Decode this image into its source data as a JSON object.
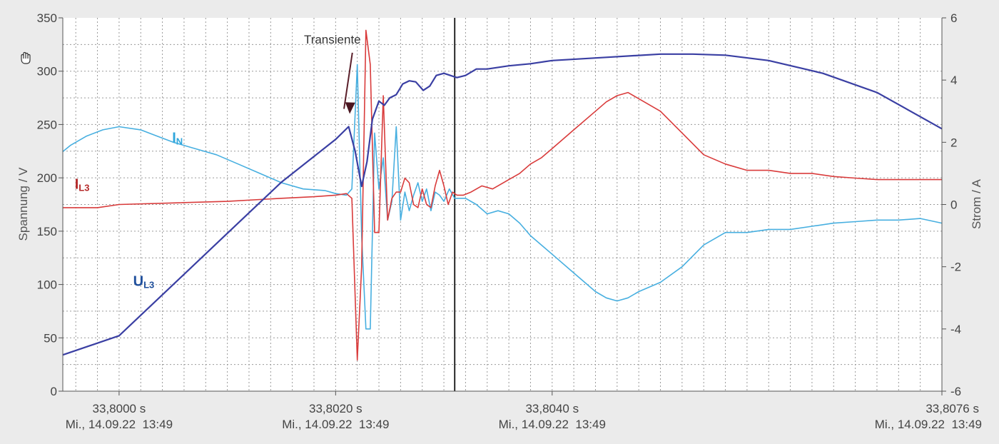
{
  "chart_data": {
    "type": "line",
    "ylabel": "Spannung / V",
    "ylabel_right": "Strom / A",
    "ylim": [
      0,
      350
    ],
    "ylim_right": [
      -6,
      6
    ],
    "y_ticks": [
      "0",
      "50",
      "100",
      "150",
      "200",
      "250",
      "300",
      "350"
    ],
    "y_ticks_right": [
      "-6",
      "-4",
      "-2",
      "0",
      "2",
      "4",
      "6"
    ],
    "xlim": [
      33.79948,
      33.8076
    ],
    "x_ticks": [
      {
        "t": 33.8,
        "time": "33,8000 s",
        "date": "Mi., 14.09.22  13:49"
      },
      {
        "t": 33.802,
        "time": "33,8020 s",
        "date": "Mi., 14.09.22  13:49"
      },
      {
        "t": 33.804,
        "time": "33,8040 s",
        "date": "Mi., 14.09.22  13:49"
      },
      {
        "t": 33.8076,
        "time": "33,8076 s",
        "date": "Mi., 14.09.22  13:49"
      }
    ],
    "cursor_x": 33.8031,
    "grid": true,
    "annotation": {
      "text": "Transiente",
      "x": 33.80197,
      "y": 326,
      "arrow_to_x": 33.80213,
      "arrow_to_y": 260
    },
    "series": [
      {
        "name": "U",
        "sub": "L3",
        "axis": "left",
        "color": "#3a3fa3",
        "x": [
          33.79948,
          33.8,
          33.8005,
          33.801,
          33.8015,
          33.802,
          33.80212,
          33.80218,
          33.80224,
          33.80229,
          33.80234,
          33.8024,
          33.80245,
          33.8025,
          33.80256,
          33.80262,
          33.80268,
          33.80274,
          33.80281,
          33.80287,
          33.80293,
          33.803,
          33.80306,
          33.80312,
          33.8032,
          33.8033,
          33.8034,
          33.8036,
          33.8038,
          33.804,
          33.8045,
          33.805,
          33.8053,
          33.8056,
          33.806,
          33.8065,
          33.807,
          33.8076
        ],
        "y": [
          34,
          52,
          100,
          148,
          196,
          236,
          248,
          225,
          192,
          215,
          255,
          272,
          268,
          275,
          278,
          288,
          291,
          290,
          282,
          286,
          296,
          298,
          296,
          294,
          296,
          302,
          302,
          305,
          307,
          310,
          313,
          316,
          316,
          315,
          310,
          298,
          280,
          246
        ]
      },
      {
        "name": "I",
        "sub": "N",
        "axis": "right",
        "color": "#47afe0",
        "x": [
          33.79948,
          33.79955,
          33.7997,
          33.79985,
          33.8,
          33.8002,
          33.80035,
          33.8005,
          33.8007,
          33.8009,
          33.8011,
          33.8013,
          33.8015,
          33.8017,
          33.8019,
          33.802,
          33.8021,
          33.80215,
          33.8022,
          33.80224,
          33.80228,
          33.80232,
          33.80236,
          33.8024,
          33.80244,
          33.80248,
          33.80252,
          33.80256,
          33.8026,
          33.80264,
          33.80268,
          33.80272,
          33.80276,
          33.8028,
          33.80284,
          33.80288,
          33.80292,
          33.80296,
          33.803,
          33.80305,
          33.8031,
          33.8032,
          33.8033,
          33.8034,
          33.8035,
          33.8036,
          33.8037,
          33.8038,
          33.804,
          33.8042,
          33.8044,
          33.8045,
          33.8046,
          33.8047,
          33.8048,
          33.805,
          33.8052,
          33.8054,
          33.8056,
          33.8058,
          33.806,
          33.8062,
          33.8064,
          33.8066,
          33.8068,
          33.807,
          33.8072,
          33.8074,
          33.8076
        ],
        "y": [
          1.7,
          1.9,
          2.2,
          2.4,
          2.5,
          2.4,
          2.2,
          2.0,
          1.8,
          1.6,
          1.3,
          1.0,
          0.7,
          0.5,
          0.45,
          0.35,
          0.3,
          0.5,
          4.5,
          -1,
          -4,
          -4.0,
          2.3,
          0.5,
          1.5,
          -0.5,
          0.1,
          2.5,
          -0.5,
          0.4,
          -0.2,
          0.3,
          0.7,
          0.1,
          0.5,
          -0.2,
          0.4,
          0.3,
          0.1,
          0.5,
          0.2,
          0.2,
          0.0,
          -0.3,
          -0.2,
          -0.3,
          -0.6,
          -1,
          -1.6,
          -2.2,
          -2.8,
          -3.0,
          -3.1,
          -3.0,
          -2.8,
          -2.5,
          -2.0,
          -1.3,
          -0.9,
          -0.9,
          -0.8,
          -0.8,
          -0.7,
          -0.6,
          -0.55,
          -0.5,
          -0.5,
          -0.45,
          -0.6
        ]
      },
      {
        "name": "I",
        "sub": "L3",
        "axis": "right",
        "color": "#d93b3b",
        "x": [
          33.79948,
          33.7998,
          33.8,
          33.8005,
          33.801,
          33.8015,
          33.8018,
          33.802,
          33.8021,
          33.80215,
          33.8022,
          33.80224,
          33.80228,
          33.80232,
          33.80236,
          33.8024,
          33.80244,
          33.80248,
          33.80252,
          33.80256,
          33.8026,
          33.80264,
          33.80268,
          33.80272,
          33.80276,
          33.8028,
          33.80284,
          33.80288,
          33.80292,
          33.80296,
          33.803,
          33.80304,
          33.80308,
          33.80312,
          33.80318,
          33.80325,
          33.80335,
          33.80345,
          33.8036,
          33.8037,
          33.8038,
          33.8039,
          33.804,
          33.8042,
          33.8044,
          33.8045,
          33.8046,
          33.8047,
          33.8048,
          33.805,
          33.8052,
          33.8054,
          33.8056,
          33.8058,
          33.806,
          33.8062,
          33.8064,
          33.8066,
          33.8068,
          33.807,
          33.8072,
          33.8074,
          33.8076
        ],
        "y": [
          -0.1,
          -0.1,
          0.0,
          0.05,
          0.1,
          0.2,
          0.25,
          0.3,
          0.35,
          0.2,
          -5.0,
          -2,
          5.6,
          4.5,
          -0.9,
          -0.9,
          3.5,
          -0.5,
          0.2,
          0.4,
          0.4,
          0.85,
          0.7,
          0.0,
          -0.1,
          0.5,
          0.0,
          -0.1,
          0.6,
          1.1,
          0.6,
          0.0,
          0.4,
          0.3,
          0.3,
          0.4,
          0.6,
          0.5,
          0.8,
          1.0,
          1.3,
          1.5,
          1.8,
          2.4,
          3.0,
          3.3,
          3.5,
          3.6,
          3.4,
          3.0,
          2.3,
          1.6,
          1.3,
          1.1,
          1.1,
          1.0,
          1.0,
          0.9,
          0.85,
          0.8,
          0.8,
          0.8,
          0.8
        ]
      }
    ]
  }
}
